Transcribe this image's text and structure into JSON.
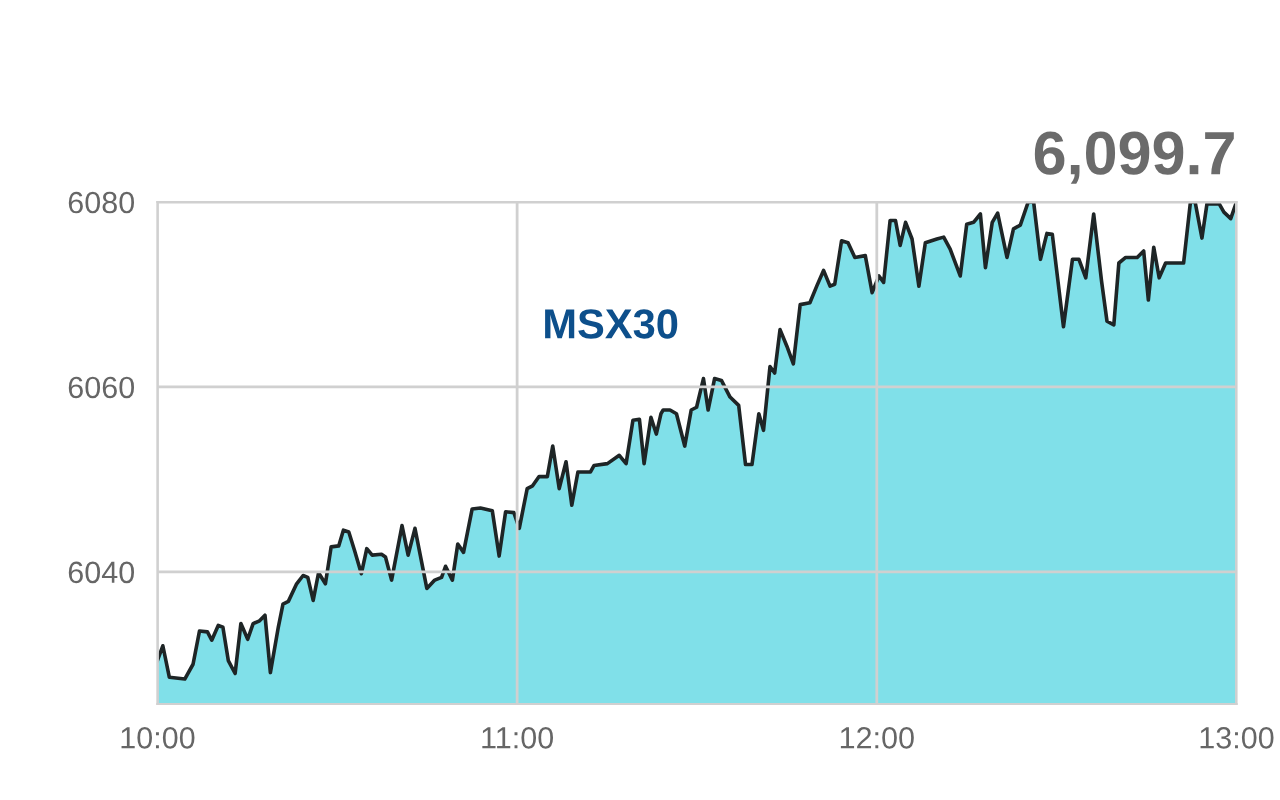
{
  "chart_data": {
    "type": "area",
    "title": "6,099.7",
    "annotations": [
      "MSX30"
    ],
    "x": [
      10.0,
      10.015,
      10.033,
      10.076,
      10.099,
      10.117,
      10.139,
      10.151,
      10.169,
      10.182,
      10.197,
      10.216,
      10.232,
      10.251,
      10.266,
      10.284,
      10.299,
      10.314,
      10.336,
      10.349,
      10.364,
      10.387,
      10.405,
      10.418,
      10.433,
      10.448,
      10.467,
      10.483,
      10.504,
      10.517,
      10.532,
      10.548,
      10.567,
      10.582,
      10.597,
      10.623,
      10.634,
      10.651,
      10.68,
      10.697,
      10.716,
      10.749,
      10.771,
      10.79,
      10.801,
      10.82,
      10.835,
      10.851,
      10.875,
      10.898,
      10.931,
      10.95,
      10.968,
      10.991,
      11.006,
      11.028,
      11.043,
      11.061,
      11.084,
      11.099,
      11.117,
      11.136,
      11.152,
      11.169,
      11.204,
      11.214,
      11.251,
      11.284,
      11.303,
      11.322,
      11.34,
      11.353,
      11.372,
      11.387,
      11.4,
      11.406,
      11.425,
      11.443,
      11.466,
      11.484,
      11.499,
      11.518,
      11.531,
      11.549,
      11.568,
      11.592,
      11.616,
      11.635,
      11.653,
      11.672,
      11.685,
      11.703,
      11.716,
      11.731,
      11.75,
      11.768,
      11.787,
      11.814,
      11.833,
      11.852,
      11.87,
      11.883,
      11.902,
      11.92,
      11.939,
      11.968,
      11.987,
      12.006,
      12.019,
      12.037,
      12.052,
      12.065,
      12.08,
      12.098,
      12.117,
      12.135,
      12.167,
      12.186,
      12.204,
      12.232,
      12.25,
      12.269,
      12.288,
      12.302,
      12.321,
      12.336,
      12.362,
      12.38,
      12.399,
      12.421,
      12.436,
      12.455,
      12.473,
      12.488,
      12.519,
      12.544,
      12.562,
      12.581,
      12.603,
      12.625,
      12.64,
      12.659,
      12.673,
      12.692,
      12.724,
      12.742,
      12.755,
      12.77,
      12.785,
      12.803,
      12.853,
      12.872,
      12.885,
      12.904,
      12.918,
      12.952,
      12.965,
      12.984,
      13.0
    ],
    "series": [
      {
        "color": "#80e0e9",
        "values": [
          6030.4,
          6032.0,
          6028.6,
          6028.4,
          6030.0,
          6033.6,
          6033.5,
          6032.6,
          6034.2,
          6034.0,
          6030.4,
          6029.0,
          6034.4,
          6032.7,
          6034.4,
          6034.7,
          6035.3,
          6029.1,
          6034.0,
          6036.5,
          6036.8,
          6038.7,
          6039.6,
          6039.4,
          6036.9,
          6039.9,
          6038.7,
          6042.7,
          6042.8,
          6044.5,
          6044.3,
          6042.3,
          6039.8,
          6042.5,
          6041.8,
          6041.9,
          6041.6,
          6039.1,
          6045.0,
          6041.8,
          6044.7,
          6038.2,
          6039.1,
          6039.4,
          6040.6,
          6039.1,
          6043.0,
          6042.1,
          6046.8,
          6046.9,
          6046.6,
          6041.7,
          6046.5,
          6046.4,
          6044.7,
          6049.0,
          6049.3,
          6050.3,
          6050.3,
          6053.6,
          6049.0,
          6051.9,
          6047.2,
          6050.8,
          6050.8,
          6051.5,
          6051.7,
          6052.6,
          6051.7,
          6056.4,
          6056.5,
          6051.7,
          6056.7,
          6054.9,
          6057.1,
          6057.5,
          6057.5,
          6057.1,
          6053.6,
          6057.5,
          6057.8,
          6060.9,
          6057.5,
          6060.9,
          6060.7,
          6058.9,
          6058.0,
          6051.6,
          6051.6,
          6057.1,
          6055.3,
          6062.2,
          6061.5,
          6066.2,
          6064.4,
          6062.5,
          6068.9,
          6069.1,
          6070.9,
          6072.6,
          6070.9,
          6071.1,
          6075.8,
          6075.6,
          6074.0,
          6074.2,
          6070.2,
          6072.0,
          6071.3,
          6078.0,
          6078.0,
          6075.3,
          6077.8,
          6076.0,
          6070.9,
          6075.6,
          6076.0,
          6076.2,
          6074.9,
          6072.0,
          6077.6,
          6077.8,
          6078.7,
          6072.9,
          6077.8,
          6078.8,
          6074.0,
          6077.1,
          6077.5,
          6080.0,
          6080.0,
          6073.8,
          6076.6,
          6076.5,
          6066.5,
          6073.8,
          6073.8,
          6071.8,
          6078.7,
          6071.4,
          6067.1,
          6066.7,
          6073.4,
          6074.0,
          6074.0,
          6074.7,
          6069.4,
          6075.1,
          6071.8,
          6073.4,
          6073.4,
          6080.0,
          6080.0,
          6076.1,
          6079.8,
          6079.8,
          6078.9,
          6078.2,
          6080.0
        ]
      }
    ],
    "xlim": [
      10,
      13.0
    ],
    "xticks": [
      {
        "value": 10,
        "label": "10:00"
      },
      {
        "value": 11,
        "label": "11:00"
      },
      {
        "value": 12,
        "label": "12:00"
      },
      {
        "value": 13,
        "label": "13:00"
      }
    ],
    "ylim": [
      6025.7,
      6080
    ],
    "yticks": [
      6040,
      6060,
      6080
    ],
    "grid": true
  }
}
